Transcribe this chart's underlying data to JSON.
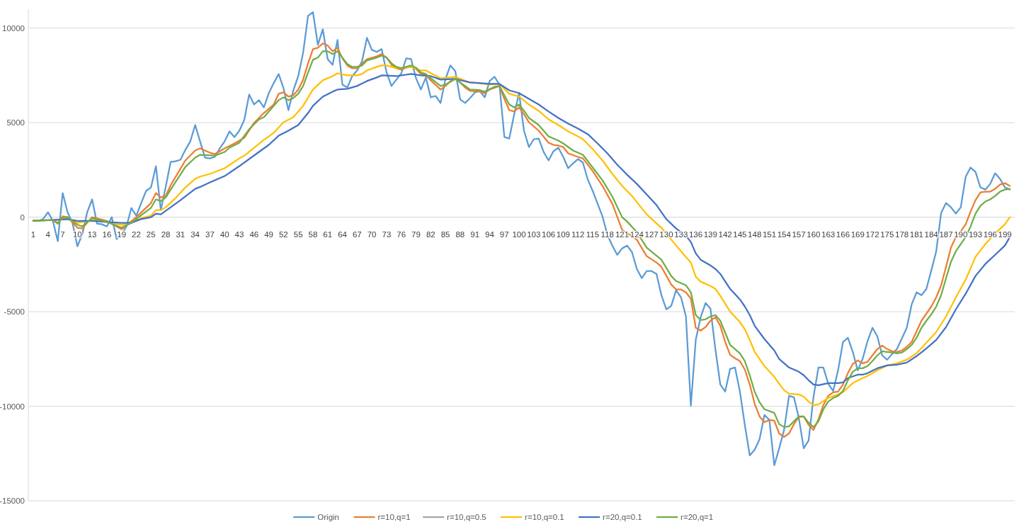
{
  "chart_data": {
    "type": "line",
    "xlim": [
      0,
      201
    ],
    "xticks": [
      1,
      4,
      7,
      10,
      13,
      16,
      19,
      22,
      25,
      28,
      31,
      34,
      37,
      40,
      43,
      46,
      49,
      52,
      55,
      58,
      61,
      64,
      67,
      70,
      73,
      76,
      79,
      82,
      85,
      88,
      91,
      94,
      97,
      100,
      103,
      106,
      109,
      112,
      115,
      118,
      121,
      124,
      127,
      130,
      133,
      136,
      139,
      142,
      145,
      148,
      151,
      154,
      157,
      160,
      163,
      166,
      169,
      172,
      175,
      178,
      181,
      184,
      187,
      190,
      193,
      196,
      199
    ],
    "ylim": [
      -15000,
      11000
    ],
    "yticks": [
      -15000,
      -10000,
      -5000,
      0,
      5000,
      10000
    ],
    "grid": "y",
    "legend": "bottom",
    "marker": "none",
    "line_style": "solid",
    "series": [
      {
        "name": "Origin",
        "color": "#5b9bd5",
        "x": [
          1,
          2,
          3,
          4,
          5,
          6,
          7,
          8,
          9,
          10,
          11,
          12,
          13,
          14,
          15,
          16,
          17,
          18,
          19,
          20,
          21,
          22,
          23,
          24,
          25,
          26,
          27,
          28,
          29,
          30,
          31,
          32,
          33,
          34,
          35,
          36,
          37,
          38,
          39,
          40,
          41,
          42,
          43,
          44,
          45,
          46,
          47,
          48,
          49,
          50,
          51,
          52,
          53,
          54,
          55,
          56,
          57,
          58,
          59,
          60,
          61,
          62,
          63,
          64,
          65,
          66,
          67,
          68,
          69,
          70,
          71,
          72,
          73,
          74,
          75,
          76,
          77,
          78,
          79,
          80,
          81,
          82,
          83,
          84,
          85,
          86,
          87,
          88,
          89,
          90,
          91,
          92,
          93,
          94,
          95,
          96,
          97,
          98,
          99,
          100,
          101,
          102,
          103,
          104,
          105,
          106,
          107,
          108,
          109,
          110,
          111,
          112,
          113,
          114,
          115,
          116,
          117,
          118,
          119,
          120,
          121,
          122,
          123,
          124,
          125,
          126,
          127,
          128,
          129,
          130,
          131,
          132,
          133,
          134,
          135,
          136,
          137,
          138,
          139,
          140,
          141,
          142,
          143,
          144,
          145,
          146,
          147,
          148,
          149,
          150,
          151,
          152,
          153,
          154,
          155,
          156,
          157,
          158,
          159,
          160,
          161,
          162,
          163,
          164,
          165,
          166,
          167,
          168,
          169,
          170,
          171,
          172,
          173,
          174,
          175,
          176,
          177,
          178,
          179,
          180,
          181,
          182,
          183,
          184,
          185,
          186,
          187,
          188,
          189,
          190,
          191,
          192,
          193,
          194,
          195,
          196,
          197,
          198,
          199,
          200
        ],
        "values": [
          -190,
          -200,
          -100,
          260,
          -190,
          -1270,
          1275,
          260,
          -300,
          -1540,
          -900,
          260,
          940,
          -340,
          -375,
          -490,
          0,
          -1160,
          -900,
          -490,
          490,
          75,
          750,
          1390,
          1575,
          2700,
          375,
          1610,
          2925,
          2960,
          3040,
          3560,
          4010,
          4875,
          4010,
          3150,
          3110,
          3190,
          3640,
          4010,
          4540,
          4240,
          4575,
          5140,
          6490,
          5960,
          6190,
          5810,
          6560,
          7090,
          7575,
          6825,
          5660,
          6710,
          7460,
          8700,
          10650,
          10840,
          9110,
          9940,
          8360,
          8060,
          9375,
          7010,
          6860,
          7460,
          7760,
          8250,
          9490,
          8850,
          8740,
          8890,
          7650,
          6940,
          7275,
          7610,
          8400,
          8360,
          7350,
          6750,
          7390,
          6340,
          6410,
          6040,
          7310,
          8025,
          7725,
          6225,
          6040,
          6300,
          6600,
          6675,
          6340,
          7200,
          7425,
          7010,
          4240,
          4160,
          5440,
          6560,
          4575,
          3710,
          4125,
          4160,
          3450,
          3000,
          3490,
          3675,
          3190,
          2590,
          2850,
          3075,
          2890,
          1990,
          1390,
          710,
          40,
          -940,
          -1500,
          -1990,
          -1650,
          -1500,
          -1840,
          -2740,
          -3225,
          -2850,
          -2850,
          -3000,
          -4125,
          -4875,
          -4690,
          -3860,
          -4240,
          -5250,
          -9975,
          -6490,
          -5290,
          -4540,
          -4840,
          -6975,
          -8850,
          -9225,
          -8025,
          -7950,
          -9225,
          -10990,
          -12600,
          -12300,
          -11740,
          -10460,
          -10725,
          -13125,
          -12225,
          -11250,
          -9450,
          -9525,
          -10610,
          -12225,
          -11810,
          -9490,
          -7950,
          -7950,
          -8810,
          -9190,
          -8100,
          -6600,
          -6375,
          -7125,
          -8100,
          -7500,
          -6560,
          -5850,
          -6300,
          -7310,
          -7540,
          -7240,
          -6975,
          -6410,
          -5850,
          -4610,
          -3975,
          -4125,
          -3790,
          -2810,
          -1800,
          225,
          750,
          525,
          190,
          525,
          2140,
          2625,
          2400,
          1575,
          1460,
          1760,
          2325,
          2025,
          1575,
          1460
        ]
      },
      {
        "name": "r=10,q=1",
        "color": "#ed7d31",
        "x": [
          1,
          5,
          6,
          7,
          8,
          10,
          11,
          13,
          16,
          19,
          22,
          25,
          26,
          27,
          28,
          29,
          32,
          34,
          35,
          37,
          38,
          40,
          42,
          44,
          46,
          48,
          50,
          51,
          52,
          53,
          54,
          55,
          56,
          57,
          58,
          59,
          60,
          61,
          62,
          63,
          64,
          65,
          66,
          67,
          69,
          71,
          72,
          73,
          74,
          75,
          76,
          77,
          78,
          79,
          80,
          81,
          82,
          84,
          85,
          86,
          87,
          88,
          89,
          90,
          92,
          93,
          94,
          96,
          97,
          98,
          99,
          100,
          101,
          102,
          104,
          106,
          107,
          108,
          109,
          110,
          112,
          113,
          115,
          117,
          119,
          121,
          122,
          123,
          124,
          126,
          128,
          129,
          131,
          132,
          133,
          134,
          135,
          136,
          137,
          138,
          139,
          140,
          141,
          142,
          143,
          144,
          145,
          146,
          147,
          148,
          149,
          150,
          151,
          152,
          153,
          154,
          155,
          156,
          157,
          158,
          159,
          160,
          161,
          162,
          163,
          164,
          165,
          166,
          167,
          168,
          169,
          170,
          171,
          172,
          173,
          174,
          175,
          176,
          177,
          178,
          179,
          180,
          181,
          182,
          183,
          184,
          185,
          186,
          187,
          188,
          189,
          190,
          191,
          192,
          193,
          194,
          195,
          196,
          197,
          198,
          199,
          200
        ],
        "values": [
          -190,
          -150,
          -350,
          50,
          0,
          -560,
          -600,
          0,
          -200,
          -640,
          0,
          750,
          1275,
          1050,
          1130,
          1690,
          3000,
          3525,
          3640,
          3410,
          3340,
          3640,
          3900,
          4200,
          4990,
          5510,
          5960,
          6525,
          6600,
          6375,
          6450,
          6750,
          7275,
          8140,
          8890,
          8960,
          9190,
          9075,
          8775,
          8960,
          8400,
          8025,
          7875,
          7875,
          8360,
          8510,
          8625,
          8440,
          8060,
          7875,
          7800,
          7910,
          7950,
          7840,
          7575,
          7500,
          7240,
          6750,
          6940,
          7200,
          7310,
          7125,
          6860,
          6675,
          6640,
          6560,
          6750,
          6940,
          6260,
          5660,
          5590,
          5810,
          5440,
          5025,
          4575,
          3940,
          3825,
          3790,
          3710,
          3375,
          3190,
          3110,
          2440,
          1650,
          710,
          -675,
          -860,
          -975,
          -1200,
          -2060,
          -2400,
          -2625,
          -3560,
          -3825,
          -3825,
          -3975,
          -4310,
          -5850,
          -6000,
          -5810,
          -5475,
          -5290,
          -5740,
          -6600,
          -7275,
          -7460,
          -7610,
          -8060,
          -8850,
          -9860,
          -10540,
          -10840,
          -10725,
          -10760,
          -11440,
          -11625,
          -11440,
          -10950,
          -10575,
          -10540,
          -10990,
          -11250,
          -10690,
          -9940,
          -9450,
          -9260,
          -9225,
          -8850,
          -8250,
          -7760,
          -7575,
          -7725,
          -7650,
          -7310,
          -6975,
          -6790,
          -6975,
          -7090,
          -7125,
          -7050,
          -6860,
          -6600,
          -6040,
          -5475,
          -5100,
          -4725,
          -4240,
          -3600,
          -2625,
          -1610,
          -1050,
          -750,
          -375,
          300,
          900,
          1310,
          1350,
          1350,
          1500,
          1725,
          1800,
          1650
        ]
      },
      {
        "name": "r=10,q=0.5",
        "color": "#a5a5a5"
      },
      {
        "name": "r=10,q=0.1",
        "color": "#ffc000",
        "x": [
          1,
          5,
          8,
          10,
          13,
          16,
          19,
          21,
          23,
          25,
          26,
          27,
          28,
          30,
          32,
          34,
          35,
          37,
          40,
          43,
          44,
          46,
          48,
          50,
          52,
          54,
          56,
          58,
          60,
          62,
          63,
          65,
          67,
          68,
          69,
          71,
          72,
          73,
          75,
          77,
          78,
          80,
          81,
          84,
          86,
          87,
          90,
          92,
          94,
          96,
          97,
          98,
          100,
          102,
          104,
          106,
          108,
          110,
          112,
          113,
          115,
          117,
          119,
          121,
          123,
          126,
          129,
          132,
          133,
          134,
          135,
          136,
          137,
          139,
          140,
          141,
          143,
          145,
          146,
          147,
          148,
          150,
          152,
          153,
          154,
          155,
          157,
          158,
          159,
          160,
          161,
          163,
          165,
          166,
          168,
          170,
          171,
          173,
          175,
          177,
          179,
          181,
          183,
          185,
          187,
          189,
          191,
          193,
          195,
          197,
          199,
          200
        ],
        "values": [
          -190,
          -150,
          -100,
          -300,
          -150,
          -250,
          -410,
          -300,
          -50,
          75,
          375,
          375,
          525,
          1010,
          1575,
          2025,
          2150,
          2290,
          2590,
          3110,
          3250,
          3675,
          4090,
          4460,
          5025,
          5290,
          5890,
          6750,
          7240,
          7460,
          7610,
          7500,
          7500,
          7575,
          7760,
          7950,
          8025,
          8025,
          7875,
          7910,
          7950,
          7760,
          7760,
          7350,
          7390,
          7425,
          7125,
          7090,
          7010,
          7050,
          6790,
          6525,
          6375,
          5960,
          5625,
          5175,
          4875,
          4540,
          4275,
          4125,
          3600,
          3000,
          2290,
          1650,
          1125,
          150,
          -560,
          -1500,
          -1800,
          -2100,
          -2400,
          -3150,
          -3410,
          -3640,
          -3790,
          -4160,
          -4990,
          -5550,
          -5925,
          -6490,
          -7125,
          -7875,
          -8440,
          -8810,
          -9150,
          -9340,
          -9375,
          -9490,
          -9750,
          -9940,
          -9900,
          -9560,
          -9375,
          -9260,
          -8775,
          -8510,
          -8400,
          -8100,
          -7840,
          -7725,
          -7540,
          -7200,
          -6640,
          -6075,
          -5250,
          -4240,
          -3300,
          -2100,
          -1425,
          -860,
          -375,
          0
        ]
      },
      {
        "name": "r=20,q=0.1",
        "color": "#4472c4",
        "x": [
          1,
          5,
          8,
          10,
          13,
          16,
          19,
          21,
          23,
          25,
          26,
          27,
          28,
          31,
          34,
          35,
          37,
          40,
          43,
          45,
          47,
          49,
          51,
          53,
          55,
          57,
          58,
          60,
          62,
          63,
          65,
          67,
          69,
          71,
          72,
          75,
          78,
          80,
          82,
          84,
          87,
          90,
          92,
          94,
          96,
          98,
          100,
          102,
          104,
          106,
          108,
          110,
          112,
          114,
          116,
          118,
          120,
          122,
          124,
          126,
          128,
          130,
          132,
          134,
          135,
          136,
          137,
          139,
          140,
          141,
          143,
          145,
          146,
          147,
          148,
          150,
          152,
          153,
          155,
          157,
          158,
          159,
          160,
          161,
          163,
          165,
          166,
          167,
          169,
          170,
          171,
          173,
          175,
          177,
          179,
          181,
          183,
          185,
          187,
          189,
          191,
          193,
          195,
          197,
          199,
          200
        ],
        "values": [
          -190,
          -150,
          -100,
          -200,
          -200,
          -250,
          -300,
          -300,
          -100,
          0,
          190,
          150,
          340,
          900,
          1500,
          1600,
          1840,
          2175,
          2700,
          3075,
          3450,
          3825,
          4310,
          4575,
          4875,
          5510,
          5890,
          6375,
          6640,
          6750,
          6790,
          6940,
          7200,
          7390,
          7500,
          7460,
          7575,
          7500,
          7460,
          7275,
          7310,
          7125,
          7090,
          7050,
          7050,
          6710,
          6560,
          6260,
          5960,
          5590,
          5250,
          4950,
          4690,
          4390,
          3900,
          3375,
          2775,
          2250,
          1760,
          1200,
          640,
          -100,
          -600,
          -975,
          -1310,
          -1910,
          -2250,
          -2550,
          -2740,
          -3000,
          -3790,
          -4350,
          -4725,
          -5175,
          -5740,
          -6450,
          -7050,
          -7500,
          -7950,
          -8175,
          -8360,
          -8625,
          -8850,
          -8890,
          -8775,
          -8775,
          -8740,
          -8510,
          -8330,
          -8330,
          -8250,
          -7990,
          -7840,
          -7800,
          -7690,
          -7350,
          -6940,
          -6490,
          -5810,
          -4875,
          -4050,
          -3110,
          -2475,
          -1990,
          -1500,
          -1050
        ]
      },
      {
        "name": "r=20,q=1",
        "color": "#70ad47",
        "x": [
          1,
          5,
          6,
          7,
          8,
          10,
          11,
          13,
          16,
          19,
          21,
          23,
          25,
          26,
          27,
          28,
          29,
          32,
          34,
          35,
          38,
          40,
          41,
          43,
          45,
          47,
          48,
          51,
          52,
          53,
          54,
          55,
          56,
          57,
          58,
          59,
          60,
          61,
          62,
          63,
          64,
          65,
          66,
          67,
          68,
          69,
          71,
          72,
          73,
          74,
          75,
          76,
          78,
          79,
          80,
          81,
          82,
          84,
          85,
          87,
          88,
          90,
          92,
          93,
          95,
          96,
          97,
          98,
          99,
          100,
          101,
          102,
          104,
          106,
          108,
          109,
          111,
          113,
          115,
          117,
          119,
          121,
          122,
          124,
          126,
          129,
          131,
          132,
          134,
          135,
          136,
          137,
          138,
          139,
          140,
          141,
          142,
          143,
          145,
          146,
          147,
          148,
          149,
          150,
          152,
          153,
          154,
          155,
          156,
          157,
          158,
          159,
          160,
          161,
          162,
          163,
          164,
          165,
          166,
          167,
          168,
          169,
          170,
          171,
          172,
          173,
          174,
          175,
          176,
          177,
          178,
          179,
          180,
          181,
          182,
          183,
          184,
          185,
          186,
          187,
          188,
          189,
          190,
          191,
          192,
          193,
          194,
          195,
          196,
          197,
          198,
          199,
          200
        ],
        "values": [
          -190,
          -150,
          -300,
          -50,
          0,
          -400,
          -490,
          -50,
          -250,
          -560,
          -300,
          100,
          500,
          940,
          850,
          1050,
          1460,
          2660,
          3150,
          3300,
          3260,
          3450,
          3675,
          3940,
          4650,
          5175,
          5290,
          6190,
          6340,
          6190,
          6300,
          6525,
          6940,
          7650,
          8325,
          8440,
          8775,
          8775,
          8625,
          8775,
          8440,
          8100,
          7950,
          7950,
          8025,
          8290,
          8440,
          8550,
          8440,
          8140,
          7950,
          7875,
          8025,
          7910,
          7650,
          7575,
          7350,
          6940,
          7010,
          7310,
          7125,
          6750,
          6720,
          6640,
          6900,
          6940,
          6450,
          5960,
          5810,
          5960,
          5625,
          5250,
          4875,
          4275,
          4050,
          3900,
          3525,
          3300,
          2625,
          1950,
          1090,
          0,
          -225,
          -790,
          -1610,
          -2250,
          -3110,
          -3375,
          -3600,
          -3975,
          -5175,
          -5440,
          -5400,
          -5250,
          -5175,
          -5475,
          -6110,
          -6750,
          -7200,
          -7610,
          -8360,
          -9225,
          -9790,
          -10160,
          -10350,
          -10950,
          -11100,
          -11060,
          -10800,
          -10540,
          -10540,
          -10875,
          -11100,
          -10800,
          -10160,
          -9750,
          -9560,
          -9450,
          -9190,
          -8625,
          -8175,
          -7990,
          -7990,
          -7875,
          -7610,
          -7310,
          -7090,
          -7125,
          -7160,
          -7200,
          -7160,
          -6975,
          -6750,
          -6375,
          -5850,
          -5475,
          -5140,
          -4725,
          -4125,
          -3225,
          -2360,
          -1800,
          -1425,
          -1050,
          -490,
          190,
          600,
          825,
          940,
          1125,
          1350,
          1460,
          1500
        ]
      }
    ]
  }
}
